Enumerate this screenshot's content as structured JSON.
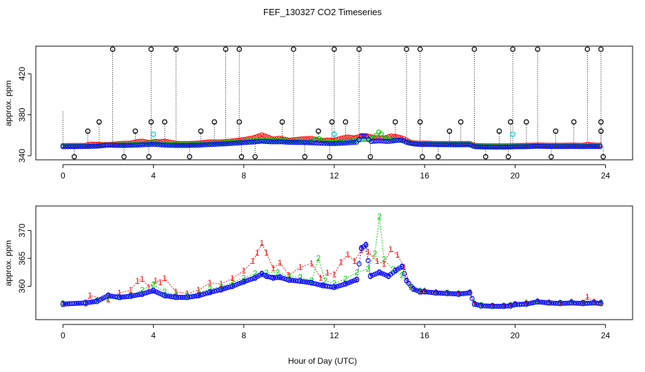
{
  "figure_title": "FEF_130327  CO2 Timeseries",
  "colors": {
    "axis": "#000000",
    "background": "#ffffff",
    "series_1": "#ff0000",
    "series_2": "#00cc00",
    "series_3": "#0000ff",
    "spike": "#000000",
    "cyan_marker": "#00cccc"
  },
  "chart_data": [
    {
      "type": "scatter",
      "title": "FEF_130327  CO2 Timeseries",
      "xlabel": "",
      "ylabel": "approx. ppm",
      "xlim": [
        -1.2,
        25.2
      ],
      "ylim": [
        336,
        447
      ],
      "xticks": [
        0,
        4,
        8,
        12,
        16,
        20,
        24
      ],
      "yticks": [
        340,
        380,
        420
      ],
      "grid": false,
      "legend": "none",
      "notes": "circle markers; black = raw samples incl. spikes, red/green/blue = series 1-3",
      "spikes_high": [
        2.2,
        3.9,
        5.0,
        7.2,
        7.8,
        10.2,
        12.0,
        13.1,
        15.2,
        15.8,
        18.2,
        19.9,
        21.0,
        23.2,
        23.8
      ],
      "spikes_mid": [
        1.6,
        3.9,
        4.5,
        6.7,
        7.8,
        9.7,
        11.9,
        12.5,
        14.7,
        15.8,
        17.6,
        19.8,
        20.5,
        22.6,
        23.8
      ],
      "spikes_low_bump": [
        1.1,
        3.2,
        6.1,
        11.3,
        17.1,
        19.3,
        21.8,
        23.8
      ],
      "spikes_low": [
        0.5,
        2.7,
        3.8,
        5.6,
        7.9,
        8.5,
        10.7,
        11.8,
        13.6,
        15.9,
        16.6,
        18.7,
        19.7,
        21.6,
        23.9
      ],
      "cyan_points": [
        {
          "x": 4.0,
          "y": 361
        },
        {
          "x": 12.0,
          "y": 361
        },
        {
          "x": 19.9,
          "y": 361
        }
      ]
    },
    {
      "type": "line",
      "title": "",
      "xlabel": "Hour of Day (UTC)",
      "ylabel": "approx. ppm",
      "xlim": [
        -1.2,
        25.2
      ],
      "ylim": [
        354.0,
        374.4
      ],
      "xticks": [
        0,
        4,
        8,
        12,
        16,
        20,
        24
      ],
      "yticks": [
        360,
        365,
        370
      ],
      "grid": false,
      "legend": "none",
      "notes": "markers drawn as series numbers 1/2/3 and blue circles",
      "series": [
        {
          "name": "1",
          "x": [
            0.0,
            1.0,
            1.2,
            2.0,
            2.5,
            3.0,
            3.3,
            3.5,
            3.8,
            4.1,
            4.3,
            4.5,
            5.0,
            5.5,
            6.0,
            6.5,
            7.0,
            7.5,
            8.0,
            8.4,
            8.6,
            8.8,
            9.0,
            9.3,
            9.6,
            10.0,
            10.5,
            11.0,
            11.4,
            11.7,
            12.0,
            12.3,
            12.6,
            12.9,
            13.2,
            13.5,
            13.9,
            14.2,
            14.5,
            14.8,
            15.1,
            15.4,
            15.8,
            16.0,
            16.5,
            17.0,
            17.5,
            18.0,
            18.2,
            18.5,
            19.0,
            19.5,
            19.8,
            20.0,
            20.5,
            21.0,
            21.5,
            22.0,
            22.5,
            23.0,
            23.2,
            23.5,
            23.8
          ],
          "y": [
            356.8,
            356.9,
            358.3,
            357.6,
            358.8,
            359.3,
            360.9,
            361.3,
            359.8,
            361.0,
            360.7,
            361.4,
            359.0,
            358.7,
            359.3,
            360.6,
            360.4,
            361.4,
            362.8,
            364.5,
            366.0,
            367.7,
            366.0,
            363.2,
            364.2,
            362.0,
            363.4,
            364.1,
            361.5,
            362.4,
            362.1,
            364.3,
            365.7,
            364.5,
            366.5,
            366.2,
            364.5,
            364.0,
            366.6,
            365.6,
            363.4,
            359.8,
            359.0,
            359.2,
            358.8,
            358.8,
            358.7,
            358.9,
            356.9,
            356.6,
            356.5,
            356.5,
            356.6,
            356.8,
            357.0,
            357.3,
            357.0,
            357.0,
            357.2,
            357.0,
            358.1,
            357.2,
            357.1
          ]
        },
        {
          "name": "2",
          "x": [
            0.0,
            1.0,
            1.5,
            2.0,
            2.5,
            3.0,
            3.5,
            4.0,
            4.5,
            5.0,
            5.5,
            6.0,
            6.5,
            7.0,
            7.5,
            8.0,
            8.5,
            9.0,
            9.5,
            10.0,
            10.5,
            11.0,
            11.3,
            11.6,
            12.0,
            12.5,
            13.0,
            13.5,
            13.8,
            14.0,
            14.2,
            14.6,
            15.0,
            15.4,
            15.8,
            16.0,
            16.5,
            17.0,
            17.5,
            18.0,
            18.2,
            18.5,
            19.0,
            19.5,
            19.8,
            20.0,
            20.5,
            21.0,
            21.5,
            22.0,
            22.5,
            23.0,
            23.5,
            23.8
          ],
          "y": [
            356.9,
            357.0,
            357.4,
            357.8,
            358.0,
            358.3,
            359.3,
            360.3,
            359.0,
            358.4,
            358.3,
            358.8,
            359.5,
            359.9,
            360.7,
            361.5,
            362.3,
            362.4,
            362.5,
            361.7,
            361.6,
            361.0,
            365.0,
            361.0,
            360.5,
            361.3,
            362.5,
            363.1,
            365.8,
            372.5,
            364.8,
            363.0,
            362.0,
            359.8,
            359.2,
            359.1,
            358.9,
            358.8,
            358.7,
            358.9,
            356.9,
            356.6,
            356.5,
            356.5,
            356.6,
            356.8,
            356.9,
            357.2,
            357.0,
            357.0,
            357.1,
            357.0,
            357.1,
            357.0
          ]
        },
        {
          "name": "3",
          "x": [
            0.0,
            1.0,
            1.5,
            2.0,
            2.5,
            3.0,
            3.5,
            4.0,
            4.5,
            5.0,
            5.5,
            6.0,
            6.5,
            7.0,
            7.5,
            8.0,
            8.5,
            8.8,
            9.0,
            9.3,
            9.6,
            10.0,
            10.5,
            11.0,
            11.5,
            12.0,
            12.5,
            13.0,
            13.2,
            13.4,
            13.6,
            14.0,
            14.4,
            14.7,
            15.0,
            15.2,
            15.5,
            15.8,
            16.0,
            16.5,
            17.0,
            17.5,
            18.0,
            18.2,
            18.5,
            19.0,
            19.5,
            19.8,
            20.0,
            20.5,
            21.0,
            21.5,
            22.0,
            22.5,
            23.0,
            23.5,
            23.8
          ],
          "y": [
            356.8,
            357.0,
            357.3,
            358.3,
            358.0,
            358.2,
            358.6,
            359.2,
            358.3,
            358.0,
            358.0,
            358.3,
            358.9,
            359.4,
            360.0,
            360.8,
            361.5,
            362.2,
            361.8,
            361.5,
            361.6,
            361.1,
            360.9,
            360.6,
            360.1,
            359.8,
            360.4,
            361.2,
            366.8,
            367.4,
            361.8,
            362.5,
            361.8,
            362.8,
            363.5,
            361.0,
            359.5,
            359.0,
            359.0,
            358.8,
            358.7,
            358.6,
            358.8,
            356.8,
            356.5,
            356.4,
            356.4,
            356.5,
            356.7,
            356.8,
            357.2,
            357.0,
            356.9,
            357.0,
            356.9,
            357.0,
            356.9
          ]
        }
      ]
    }
  ]
}
